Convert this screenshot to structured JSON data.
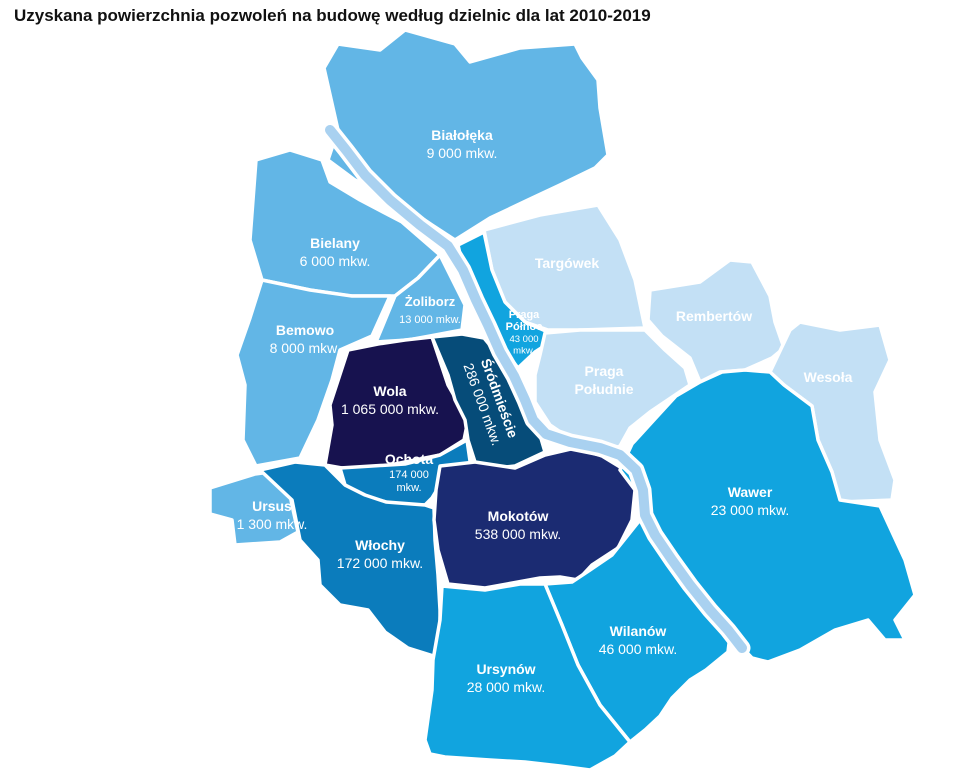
{
  "title": "Uzyskana powierzchnia pozwoleń na budowę według dzielnic dla lat 2010-2019",
  "colors": {
    "light": "#c3e0f5",
    "sky": "#62b6e6",
    "bright": "#11a4df",
    "medium": "#0b7cbc",
    "deep": "#064c79",
    "navy": "#1b2b72",
    "darkest": "#17124f",
    "river_fill": "#a9d1f0",
    "label_light": "#ffffff",
    "label_dark": "#ffffff"
  },
  "districts": [
    {
      "id": "bialoleka",
      "name": "Białołęka",
      "value": "9 000 mkw.",
      "shade": "sky"
    },
    {
      "id": "bielany",
      "name": "Bielany",
      "value": "6 000 mkw.",
      "shade": "sky"
    },
    {
      "id": "bemowo",
      "name": "Bemowo",
      "value": "8 000 mkw.",
      "shade": "sky"
    },
    {
      "id": "zoliborz",
      "name": "Żoliborz",
      "value": "13 000 mkw.",
      "shade": "sky"
    },
    {
      "id": "targowek",
      "name": "Targówek",
      "value": "",
      "shade": "light"
    },
    {
      "id": "praga-polnoc",
      "name": "Praga Północ",
      "value": "43 000 mkw.",
      "shade": "bright"
    },
    {
      "id": "rembertow",
      "name": "Rembertów",
      "value": "",
      "shade": "light"
    },
    {
      "id": "wesola",
      "name": "Wesoła",
      "value": "",
      "shade": "light"
    },
    {
      "id": "praga-poludnie",
      "name": "Praga Południe",
      "value": "",
      "shade": "light"
    },
    {
      "id": "wola",
      "name": "Wola",
      "value": "1 065 000 mkw.",
      "shade": "darkest"
    },
    {
      "id": "srodmiescie",
      "name": "Śródmieście",
      "value": "286 000 mkw.",
      "shade": "deep"
    },
    {
      "id": "ochota",
      "name": "Ochota",
      "value": "174 000 mkw.",
      "shade": "medium"
    },
    {
      "id": "ursus",
      "name": "Ursus",
      "value": "1 300 mkw.",
      "shade": "sky"
    },
    {
      "id": "wlochy",
      "name": "Włochy",
      "value": "172 000 mkw.",
      "shade": "medium"
    },
    {
      "id": "mokotow",
      "name": "Mokotów",
      "value": "538 000 mkw.",
      "shade": "navy"
    },
    {
      "id": "wawer",
      "name": "Wawer",
      "value": "23 000 mkw.",
      "shade": "bright"
    },
    {
      "id": "wilanow",
      "name": "Wilanów",
      "value": "46 000 mkw.",
      "shade": "bright"
    },
    {
      "id": "ursynow",
      "name": "Ursynów",
      "value": "28 000 mkw.",
      "shade": "bright"
    }
  ]
}
